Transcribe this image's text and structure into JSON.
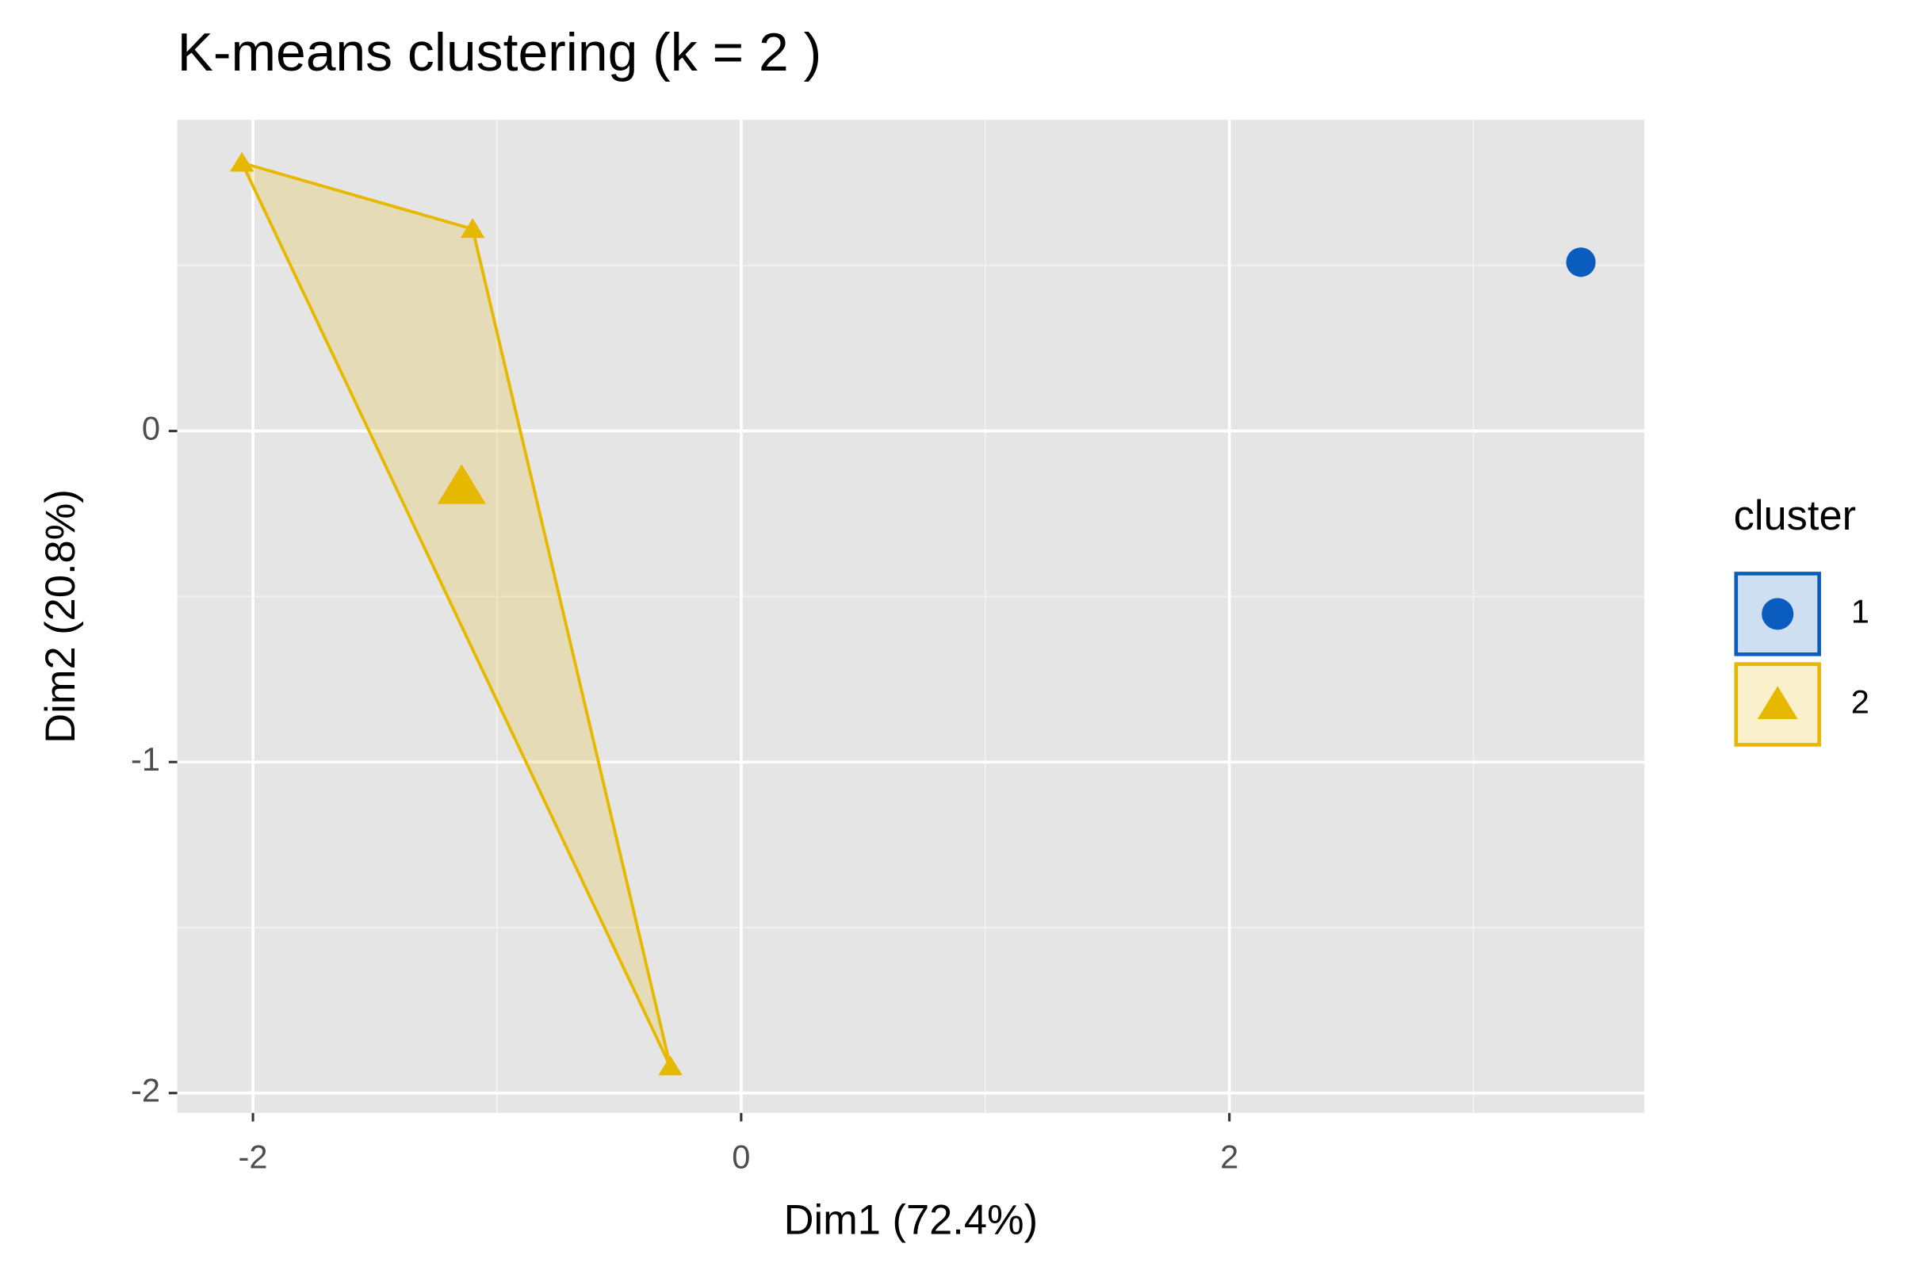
{
  "chart_data": {
    "type": "scatter",
    "title": "K-means clustering (k = 2 )",
    "x_label": "Dim1 (72.4%)",
    "y_label": "Dim2 (20.8%)",
    "legend_title": "cluster",
    "legend": "right",
    "xlim": [
      -2.31,
      3.7
    ],
    "ylim": [
      -2.06,
      0.94
    ],
    "xticks": [
      -2,
      0,
      2
    ],
    "yticks": [
      0,
      -1,
      -2
    ],
    "xminor": [
      -1,
      1,
      3
    ],
    "yminor": [
      0.5,
      -0.5,
      -1.5
    ],
    "grid": true,
    "series": [
      {
        "name": "1",
        "color": "#0A5DBF",
        "marker": "circle",
        "x": [
          3.44
        ],
        "y": [
          0.51
        ],
        "center_x": 3.44,
        "center_y": 0.51
      },
      {
        "name": "2",
        "color": "#E7B800",
        "marker": "triangle",
        "x": [
          -2.045,
          -1.1,
          -0.29
        ],
        "y": [
          0.81,
          0.61,
          -1.92
        ],
        "center_x": -1.145,
        "center_y": -0.167
      }
    ]
  }
}
